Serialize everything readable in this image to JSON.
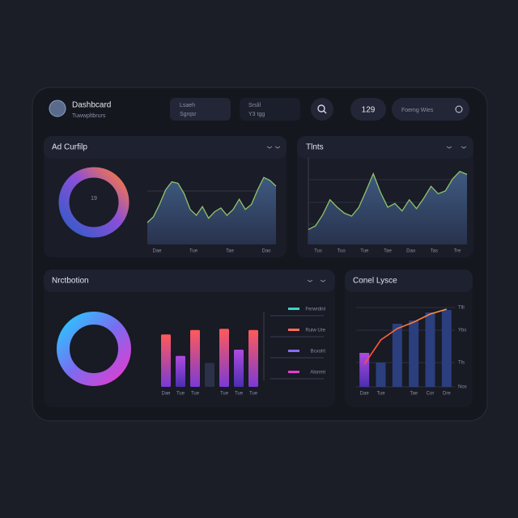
{
  "header": {
    "title": "Dashbcard",
    "subtitle": "Tuwwpltbrurs",
    "filters": [
      {
        "label": "Lsaeh",
        "value": "Sgrqsr"
      },
      {
        "label": "Srslil",
        "value": "Y3 tgg"
      }
    ],
    "count": "129",
    "button": "Foemg Wies"
  },
  "panels": [
    {
      "title": "Ad Curfilp",
      "donut_label": "19",
      "chart": {
        "type": "area",
        "ylim": [
          0,
          100
        ],
        "categories": [
          "Dae",
          "Tue",
          "Tae",
          "Dao"
        ],
        "values": [
          30,
          38,
          55,
          75,
          86,
          84,
          70,
          48,
          40,
          52,
          36,
          45,
          50,
          40,
          48,
          62,
          48,
          55,
          75,
          92,
          88,
          80
        ]
      }
    },
    {
      "title": "Tlnts",
      "chart": {
        "type": "area",
        "ylim": [
          0,
          100
        ],
        "categories": [
          "Tus",
          "Tuo",
          "Tue",
          "Tae",
          "Dao",
          "Tas",
          "Tre"
        ],
        "values": [
          20,
          25,
          40,
          60,
          50,
          42,
          38,
          50,
          72,
          95,
          70,
          50,
          55,
          45,
          60,
          48,
          62,
          78,
          68,
          72,
          88,
          98,
          94
        ]
      }
    },
    {
      "title": "Nrctbotion",
      "legend": [
        "Ferwrdinl",
        "Ruiw Ure",
        "Bcxolrt",
        "Alonmt"
      ],
      "chart": {
        "type": "bar",
        "ylim": [
          0,
          100
        ],
        "categories": [
          "Dae",
          "Tue",
          "Tue",
          null,
          "Tue",
          "Tue",
          "Tue"
        ],
        "values": [
          83,
          49,
          90,
          38,
          92,
          59,
          90
        ]
      }
    },
    {
      "title": "Conel Lysce",
      "chart": {
        "type": "bar-line",
        "ylim": [
          0,
          100
        ],
        "categories": [
          "Dae",
          "Tue",
          null,
          "Tae",
          "Cor",
          "Dre"
        ],
        "values": [
          42,
          30,
          78,
          82,
          92,
          95
        ],
        "line": [
          28,
          58,
          72,
          80,
          90,
          96
        ],
        "yticks": [
          {
            "value": 98,
            "label": "Tlli"
          },
          {
            "value": 70,
            "label": "Ybs"
          },
          {
            "value": 30,
            "label": "Tls"
          },
          {
            "value": 0,
            "label": "Nos"
          }
        ]
      }
    }
  ]
}
